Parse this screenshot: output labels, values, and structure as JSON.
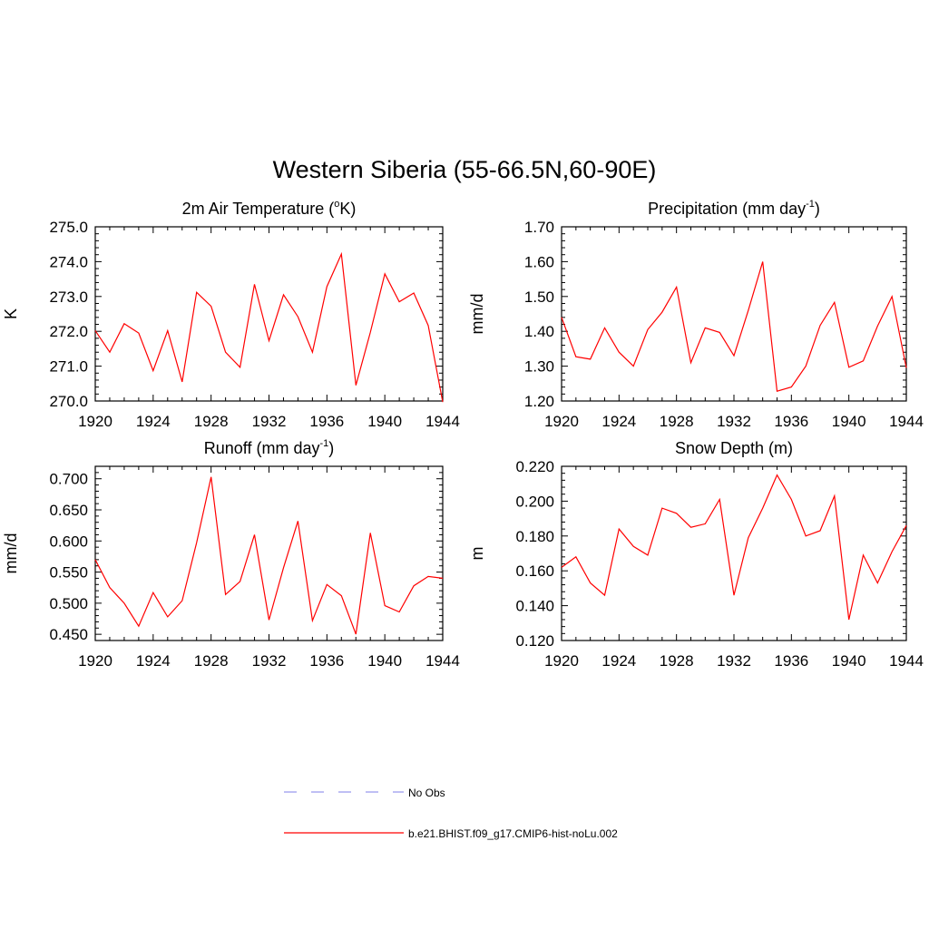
{
  "title": "Western Siberia (55-66.5N,60-90E)",
  "legend": [
    {
      "label": "No Obs",
      "color": "#9999ee",
      "dash": true
    },
    {
      "label": "b.e21.BHIST.f09_g17.CMIP6-hist-noLu.002",
      "color": "#ff0000",
      "dash": false
    }
  ],
  "chart_data": [
    {
      "type": "line",
      "title_main": "2m Air Temperature (",
      "title_sup": "o",
      "title_tail": "K)",
      "ylabel": "K",
      "xlim": [
        1920,
        1944
      ],
      "ylim": [
        270.0,
        275.0
      ],
      "x_ticks": [
        "1920",
        "1924",
        "1928",
        "1932",
        "1936",
        "1940",
        "1944"
      ],
      "y_ticks": [
        "270.0",
        "271.0",
        "272.0",
        "273.0",
        "274.0",
        "275.0"
      ],
      "series": [
        {
          "color": "#ff0000",
          "x": [
            1920,
            1921,
            1922,
            1923,
            1924,
            1925,
            1926,
            1927,
            1928,
            1929,
            1930,
            1931,
            1932,
            1933,
            1934,
            1935,
            1936,
            1937,
            1938,
            1939,
            1940,
            1941,
            1942,
            1943,
            1944
          ],
          "values": [
            272.02,
            271.4,
            272.22,
            271.95,
            270.87,
            272.02,
            270.55,
            273.12,
            272.72,
            271.4,
            270.97,
            273.35,
            271.73,
            273.05,
            272.42,
            271.4,
            273.28,
            274.22,
            270.45,
            271.97,
            273.65,
            272.85,
            273.1,
            272.17,
            269.97
          ]
        }
      ]
    },
    {
      "type": "line",
      "title_main": "Precipitation (mm day",
      "title_sup": "-1",
      "title_tail": ")",
      "ylabel": "mm/d",
      "xlim": [
        1920,
        1944
      ],
      "ylim": [
        1.2,
        1.7
      ],
      "x_ticks": [
        "1920",
        "1924",
        "1928",
        "1932",
        "1936",
        "1940",
        "1944"
      ],
      "y_ticks": [
        "1.20",
        "1.30",
        "1.40",
        "1.50",
        "1.60",
        "1.70"
      ],
      "series": [
        {
          "color": "#ff0000",
          "x": [
            1920,
            1921,
            1922,
            1923,
            1924,
            1925,
            1926,
            1927,
            1928,
            1929,
            1930,
            1931,
            1932,
            1933,
            1934,
            1935,
            1936,
            1937,
            1938,
            1939,
            1940,
            1941,
            1942,
            1943,
            1944
          ],
          "values": [
            1.44,
            1.327,
            1.32,
            1.41,
            1.34,
            1.3,
            1.405,
            1.455,
            1.527,
            1.31,
            1.41,
            1.397,
            1.33,
            1.46,
            1.6,
            1.228,
            1.24,
            1.3,
            1.417,
            1.483,
            1.297,
            1.315,
            1.415,
            1.5,
            1.295
          ]
        }
      ]
    },
    {
      "type": "line",
      "title_main": "Runoff (mm day",
      "title_sup": "-1",
      "title_tail": ")",
      "ylabel": "mm/d",
      "xlim": [
        1920,
        1944
      ],
      "ylim": [
        0.44,
        0.72
      ],
      "x_ticks": [
        "1920",
        "1924",
        "1928",
        "1932",
        "1936",
        "1940",
        "1944"
      ],
      "y_ticks": [
        "0.450",
        "0.500",
        "0.550",
        "0.600",
        "0.650",
        "0.700"
      ],
      "series": [
        {
          "color": "#ff0000",
          "x": [
            1920,
            1921,
            1922,
            1923,
            1924,
            1925,
            1926,
            1927,
            1928,
            1929,
            1930,
            1931,
            1932,
            1933,
            1934,
            1935,
            1936,
            1937,
            1938,
            1939,
            1940,
            1941,
            1942,
            1943,
            1944
          ],
          "values": [
            0.57,
            0.525,
            0.5,
            0.463,
            0.517,
            0.478,
            0.504,
            0.597,
            0.703,
            0.514,
            0.535,
            0.61,
            0.473,
            0.557,
            0.632,
            0.472,
            0.53,
            0.512,
            0.45,
            0.613,
            0.496,
            0.486,
            0.528,
            0.543,
            0.54
          ]
        }
      ]
    },
    {
      "type": "line",
      "title_main": "Snow Depth (m)",
      "title_sup": "",
      "title_tail": "",
      "ylabel": "m",
      "xlim": [
        1920,
        1944
      ],
      "ylim": [
        0.12,
        0.22
      ],
      "x_ticks": [
        "1920",
        "1924",
        "1928",
        "1932",
        "1936",
        "1940",
        "1944"
      ],
      "y_ticks": [
        "0.120",
        "0.140",
        "0.160",
        "0.180",
        "0.200",
        "0.220"
      ],
      "series": [
        {
          "color": "#ff0000",
          "x": [
            1920,
            1921,
            1922,
            1923,
            1924,
            1925,
            1926,
            1927,
            1928,
            1929,
            1930,
            1931,
            1932,
            1933,
            1934,
            1935,
            1936,
            1937,
            1938,
            1939,
            1940,
            1941,
            1942,
            1943,
            1944
          ],
          "values": [
            0.162,
            0.168,
            0.153,
            0.146,
            0.184,
            0.174,
            0.169,
            0.196,
            0.193,
            0.185,
            0.187,
            0.201,
            0.146,
            0.179,
            0.196,
            0.215,
            0.201,
            0.18,
            0.183,
            0.203,
            0.132,
            0.169,
            0.153,
            0.171,
            0.186
          ]
        }
      ]
    }
  ]
}
